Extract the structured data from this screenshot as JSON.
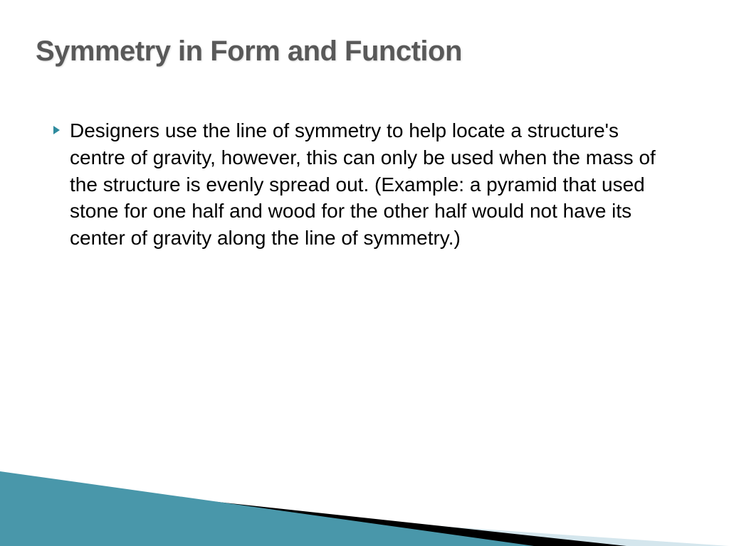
{
  "slide": {
    "title": "Symmetry in Form and Function",
    "title_color": "#595959",
    "title_fontsize": 40,
    "background_color": "#ffffff",
    "bullets": [
      {
        "text": "Designers use the line of symmetry to help locate a structure's centre of gravity, however, this can only be used when the mass of the structure is evenly spread out. (Example:  a pyramid that used stone for one half and wood for the other half would not have its center of gravity along the line of symmetry.)"
      }
    ],
    "bullet_marker_color": "#2e8b9e",
    "body_fontsize": 28,
    "body_color": "#000000",
    "decoration": {
      "triangle_light_color": "#d4e6ed",
      "triangle_black_color": "#000000",
      "triangle_teal_color": "#3a8fa3"
    }
  }
}
